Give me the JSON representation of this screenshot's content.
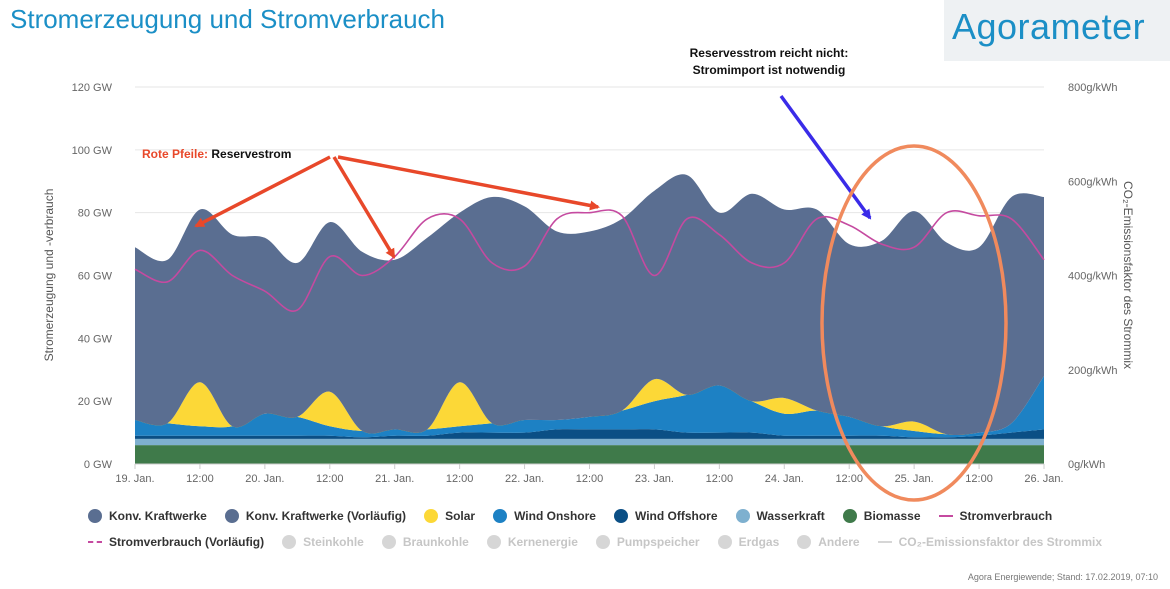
{
  "header": {
    "title": "Stromerzeugung und Stromverbrauch",
    "brand": "Agorameter"
  },
  "annotations": {
    "red_prefix": "Rote Pfeile:",
    "red_text": " Reservestrom",
    "blue_line1": "Reservesstrom reicht nicht:",
    "blue_line2": "Stromimport ist notwendig",
    "colors": {
      "red": "#e8482a",
      "blue": "#3a2be8",
      "ellipse": "#f08a5d"
    }
  },
  "footer": {
    "text": "Agora Energiewende; Stand: 17.02.2019, 07:10"
  },
  "chart_data": {
    "type": "area",
    "title": "Stromerzeugung und Stromverbrauch",
    "ylabel": "Stromerzeugung und -verbrauch",
    "ylabel_right": "CO₂-Emissionsfaktor des Strommix",
    "ylim": [
      0,
      120
    ],
    "ylim_right": [
      0,
      800
    ],
    "y_ticks": [
      "0 GW",
      "20 GW",
      "40 GW",
      "60 GW",
      "80 GW",
      "100 GW",
      "120 GW"
    ],
    "y_ticks_right": [
      "0g/kWh",
      "200g/kWh",
      "400g/kWh",
      "600g/kWh",
      "800g/kWh"
    ],
    "x_ticks": [
      "19. Jan.",
      "12:00",
      "20. Jan.",
      "12:00",
      "21. Jan.",
      "12:00",
      "22. Jan.",
      "12:00",
      "23. Jan.",
      "12:00",
      "24. Jan.",
      "12:00",
      "25. Jan.",
      "12:00",
      "26. Jan."
    ],
    "hours": [
      0,
      6,
      12,
      18,
      24,
      30,
      36,
      42,
      48,
      54,
      60,
      66,
      72,
      78,
      84,
      90,
      96,
      102,
      108,
      114,
      120,
      126,
      132,
      138,
      144,
      150,
      156,
      162,
      168
    ],
    "series": [
      {
        "name": "Biomasse",
        "color": "#3f7a4a",
        "values": [
          6,
          6,
          6,
          6,
          6,
          6,
          6,
          6,
          6,
          6,
          6,
          6,
          6,
          6,
          6,
          6,
          6,
          6,
          6,
          6,
          6,
          6,
          6,
          6,
          6,
          6,
          6,
          6,
          6
        ]
      },
      {
        "name": "Wasserkraft",
        "color": "#7eb0cf",
        "values": [
          2,
          2,
          2,
          2,
          2,
          2,
          2,
          2,
          2,
          2,
          2,
          2,
          2,
          2,
          2,
          2,
          2,
          2,
          2,
          2,
          2,
          2,
          2,
          2,
          2,
          2,
          2,
          2,
          2
        ]
      },
      {
        "name": "Wind Offshore",
        "color": "#0b4f85",
        "values": [
          1,
          1,
          1,
          1,
          1,
          1,
          1,
          0.5,
          1,
          1,
          2,
          2,
          2,
          3,
          3,
          3,
          3,
          2,
          2,
          2,
          1,
          1,
          1,
          1,
          0.5,
          0.5,
          1,
          2,
          3
        ]
      },
      {
        "name": "Wind Onshore",
        "color": "#1d81c4",
        "values": [
          5,
          4,
          3,
          3,
          7,
          6,
          3,
          2,
          2,
          2,
          2,
          3,
          4,
          3,
          4,
          6,
          9,
          12,
          15,
          10,
          7,
          8,
          6,
          3,
          2,
          1,
          1,
          3,
          17
        ]
      },
      {
        "name": "Solar",
        "color": "#fcd837",
        "values": [
          0,
          0,
          14,
          0,
          0,
          0,
          11,
          0,
          0,
          0,
          14,
          0,
          0,
          0,
          0,
          0,
          7,
          0,
          0,
          0,
          5,
          0,
          0,
          0,
          3,
          0,
          0,
          0,
          0
        ]
      },
      {
        "name": "Konv. Kraftwerke",
        "color": "#5a6e91",
        "values": [
          55,
          52,
          55,
          61,
          56,
          49,
          54,
          57,
          54,
          61,
          54,
          72,
          68,
          60,
          59,
          61,
          60,
          70,
          55,
          66,
          60,
          64,
          55,
          59,
          67,
          61,
          59,
          72,
          57
        ]
      }
    ],
    "consumption": {
      "name": "Stromverbrauch",
      "color": "#c54aa0",
      "values": [
        62,
        58,
        68,
        60,
        55,
        49,
        66,
        60,
        66,
        78,
        78,
        64,
        63,
        78,
        80,
        79,
        60,
        78,
        73,
        64,
        64,
        78,
        76,
        70,
        69,
        80,
        79,
        78,
        65
      ]
    },
    "legend": [
      {
        "name": "Konv. Kraftwerke",
        "color": "#5a6e91",
        "kind": "dot",
        "active": true
      },
      {
        "name": "Konv. Kraftwerke (Vorläufig)",
        "color": "#5a6e91",
        "kind": "dot",
        "active": true
      },
      {
        "name": "Solar",
        "color": "#fcd837",
        "kind": "dot",
        "active": true
      },
      {
        "name": "Wind Onshore",
        "color": "#1d81c4",
        "kind": "dot",
        "active": true
      },
      {
        "name": "Wind Offshore",
        "color": "#0b4f85",
        "kind": "dot",
        "active": true
      },
      {
        "name": "Wasserkraft",
        "color": "#7eb0cf",
        "kind": "dot",
        "active": true
      },
      {
        "name": "Biomasse",
        "color": "#3f7a4a",
        "kind": "dot",
        "active": true
      },
      {
        "name": "Stromverbrauch",
        "color": "#c54aa0",
        "kind": "line",
        "active": true
      },
      {
        "name": "Stromverbrauch (Vorläufig)",
        "color": "#c54aa0",
        "kind": "dashed",
        "active": true
      },
      {
        "name": "Steinkohle",
        "color": "#d6d6d6",
        "kind": "dot",
        "active": false
      },
      {
        "name": "Braunkohle",
        "color": "#d6d6d6",
        "kind": "dot",
        "active": false
      },
      {
        "name": "Kernenergie",
        "color": "#d6d6d6",
        "kind": "dot",
        "active": false
      },
      {
        "name": "Pumpspeicher",
        "color": "#d6d6d6",
        "kind": "dot",
        "active": false
      },
      {
        "name": "Erdgas",
        "color": "#d6d6d6",
        "kind": "dot",
        "active": false
      },
      {
        "name": "Andere",
        "color": "#d6d6d6",
        "kind": "dot",
        "active": false
      },
      {
        "name": "CO₂-Emissionsfaktor des Strommix",
        "color": "#d6d6d6",
        "kind": "line",
        "active": false
      }
    ]
  }
}
